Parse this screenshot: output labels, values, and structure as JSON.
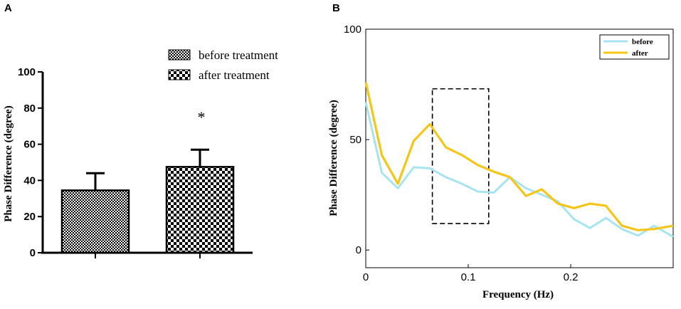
{
  "chart_data": [
    {
      "panel": "A",
      "type": "bar",
      "categories": [
        "before treatment",
        "after treatment"
      ],
      "values": [
        34.5,
        47.5
      ],
      "errors": [
        9.5,
        9.5
      ],
      "ylabel": "Phase Difference (degree)",
      "xlabel": "",
      "ylim": [
        0,
        100
      ],
      "yticks": [
        "0",
        "20",
        "40",
        "60",
        "80",
        "100"
      ],
      "legend": [
        "before treatment",
        "after treatment"
      ],
      "annotation": "*"
    },
    {
      "panel": "B",
      "type": "line",
      "xlabel": "Frequency (Hz)",
      "ylabel": "Phase Difference (degree)",
      "xlim": [
        0,
        0.3
      ],
      "ylim": [
        -8,
        100
      ],
      "xticks": [
        "0",
        "0.1",
        "0.2"
      ],
      "yticks": [
        "0",
        "50",
        "100"
      ],
      "legend_position": "top-right",
      "series": [
        {
          "name": "before",
          "color": "#a8e4f0",
          "x": [
            0,
            0.0156,
            0.0313,
            0.0469,
            0.0625,
            0.0781,
            0.0938,
            0.1094,
            0.125,
            0.1406,
            0.1563,
            0.1719,
            0.1875,
            0.2031,
            0.2188,
            0.2344,
            0.25,
            0.2656,
            0.2813,
            0.3
          ],
          "y": [
            67,
            35,
            28,
            37.5,
            37,
            33,
            30,
            26.5,
            26,
            33,
            28,
            25,
            22,
            14,
            10,
            14.5,
            9.5,
            6.5,
            11,
            6
          ]
        },
        {
          "name": "after",
          "color": "#f5c518",
          "x": [
            0,
            0.0156,
            0.0313,
            0.0469,
            0.0625,
            0.0781,
            0.0938,
            0.1094,
            0.125,
            0.1406,
            0.1563,
            0.1719,
            0.1875,
            0.2031,
            0.2188,
            0.2344,
            0.25,
            0.2656,
            0.2813,
            0.3
          ],
          "y": [
            76,
            43,
            30,
            49.5,
            57,
            46.5,
            43,
            38.5,
            35.5,
            33,
            24.5,
            27.5,
            21,
            19,
            21,
            20,
            11,
            9,
            9.5,
            11
          ]
        }
      ],
      "highlight_box": {
        "x": [
          0.065,
          0.12
        ],
        "y": [
          12,
          73
        ]
      }
    }
  ],
  "panels": {
    "a_letter": "A",
    "b_letter": "B"
  }
}
